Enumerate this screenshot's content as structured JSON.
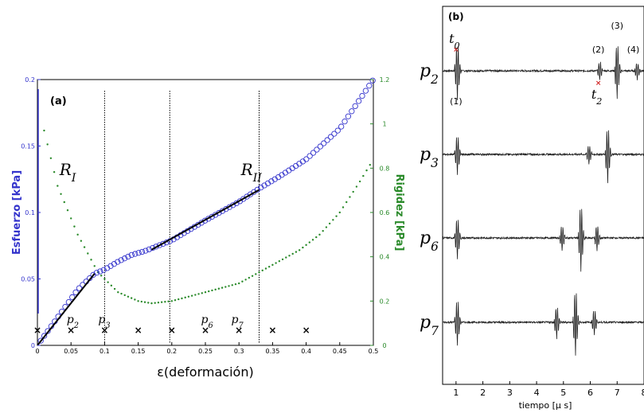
{
  "chart_data": [
    {
      "panel_label": "(a)",
      "type": "scatter",
      "xlabel": "ε(deformación)",
      "ylabel_left": "Esfuerzo [kPa]",
      "ylabel_right": "Rigidez [kPa]",
      "xlim": [
        0,
        0.5
      ],
      "ylim_left": [
        0,
        0.2
      ],
      "ylim_right": [
        0,
        1.2
      ],
      "x_ticks": [
        "0",
        "0.05",
        "0.1",
        "0.15",
        "0.2",
        "0.25",
        "0.3",
        "0.35",
        "0.4",
        "0.45",
        "0.5"
      ],
      "y_ticks_left": [
        "0",
        "0.05",
        "0.1",
        "0.15",
        "0.2"
      ],
      "y_ticks_right": [
        "0",
        "0.2",
        "0.4",
        "0.6",
        "0.8",
        "1",
        "1.2"
      ],
      "colors": {
        "stress": "#3333cc",
        "stiffness": "#2a8a2a",
        "fit": "#000000"
      },
      "stress_curve": {
        "x": [
          0,
          0.02,
          0.04,
          0.06,
          0.085,
          0.1,
          0.12,
          0.14,
          0.16,
          0.2,
          0.25,
          0.3,
          0.33,
          0.36,
          0.4,
          0.45,
          0.5
        ],
        "y": [
          0,
          0.014,
          0.028,
          0.042,
          0.054,
          0.057,
          0.063,
          0.068,
          0.071,
          0.079,
          0.094,
          0.108,
          0.118,
          0.127,
          0.14,
          0.163,
          0.2
        ]
      },
      "stiffness_curve": {
        "x": [
          0.01,
          0.03,
          0.06,
          0.09,
          0.12,
          0.15,
          0.17,
          0.2,
          0.25,
          0.3,
          0.33,
          0.36,
          0.39,
          0.42,
          0.45,
          0.48,
          0.5
        ],
        "y": [
          0.97,
          0.72,
          0.5,
          0.33,
          0.24,
          0.2,
          0.19,
          0.2,
          0.24,
          0.28,
          0.33,
          0.38,
          0.43,
          0.5,
          0.6,
          0.74,
          0.84
        ]
      },
      "fit_segments": [
        {
          "x": [
            0,
            0.085
          ],
          "y": [
            0,
            0.054
          ]
        },
        {
          "x": [
            0.17,
            0.33
          ],
          "y": [
            0.072,
            0.117
          ]
        }
      ],
      "region_lines": [
        0.1,
        0.197,
        0.33
      ],
      "regions": [
        {
          "label": "R_I",
          "x": 0.04,
          "y": 0.128
        },
        {
          "label": "R_II",
          "x": 0.31,
          "y": 0.128
        }
      ],
      "sensor_marks_x": [
        0,
        0.05,
        0.1,
        0.15,
        0.2,
        0.25,
        0.3,
        0.35,
        0.4
      ],
      "sensor_labels": [
        {
          "label": "p_2",
          "x": 0.053
        },
        {
          "label": "p_3",
          "x": 0.1
        },
        {
          "label": "p_6",
          "x": 0.253
        },
        {
          "label": "p_7",
          "x": 0.298
        }
      ]
    },
    {
      "panel_label": "(b)",
      "type": "line",
      "xlabel": "tiempo [μ s]",
      "xlim": [
        0.5,
        8
      ],
      "x_ticks": [
        "1",
        "2",
        "3",
        "4",
        "5",
        "6",
        "7",
        "8"
      ],
      "traces": [
        {
          "name": "p_2",
          "bursts": [
            [
              1.0,
              1.0
            ],
            [
              6.3,
              0.35
            ],
            [
              6.95,
              1.0
            ],
            [
              7.7,
              0.3
            ]
          ]
        },
        {
          "name": "p_3",
          "bursts": [
            [
              1.0,
              0.7
            ],
            [
              5.9,
              0.35
            ],
            [
              6.6,
              1.0
            ]
          ]
        },
        {
          "name": "p_6",
          "bursts": [
            [
              1.0,
              0.65
            ],
            [
              4.9,
              0.4
            ],
            [
              5.6,
              1.0
            ],
            [
              6.2,
              0.4
            ]
          ]
        },
        {
          "name": "p_7",
          "bursts": [
            [
              1.0,
              0.7
            ],
            [
              4.7,
              0.5
            ],
            [
              5.4,
              1.0
            ],
            [
              6.1,
              0.4
            ]
          ]
        }
      ],
      "event_labels": [
        {
          "label": "(1)",
          "x": 1.0,
          "pos": "below"
        },
        {
          "label": "(2)",
          "x": 6.3,
          "pos": "above"
        },
        {
          "label": "(3)",
          "x": 7.0,
          "pos": "top"
        },
        {
          "label": "(4)",
          "x": 7.6,
          "pos": "above"
        }
      ],
      "time_markers": [
        {
          "label": "t_0",
          "x": 1.0
        },
        {
          "label": "t_2",
          "x": 6.3
        }
      ]
    }
  ]
}
